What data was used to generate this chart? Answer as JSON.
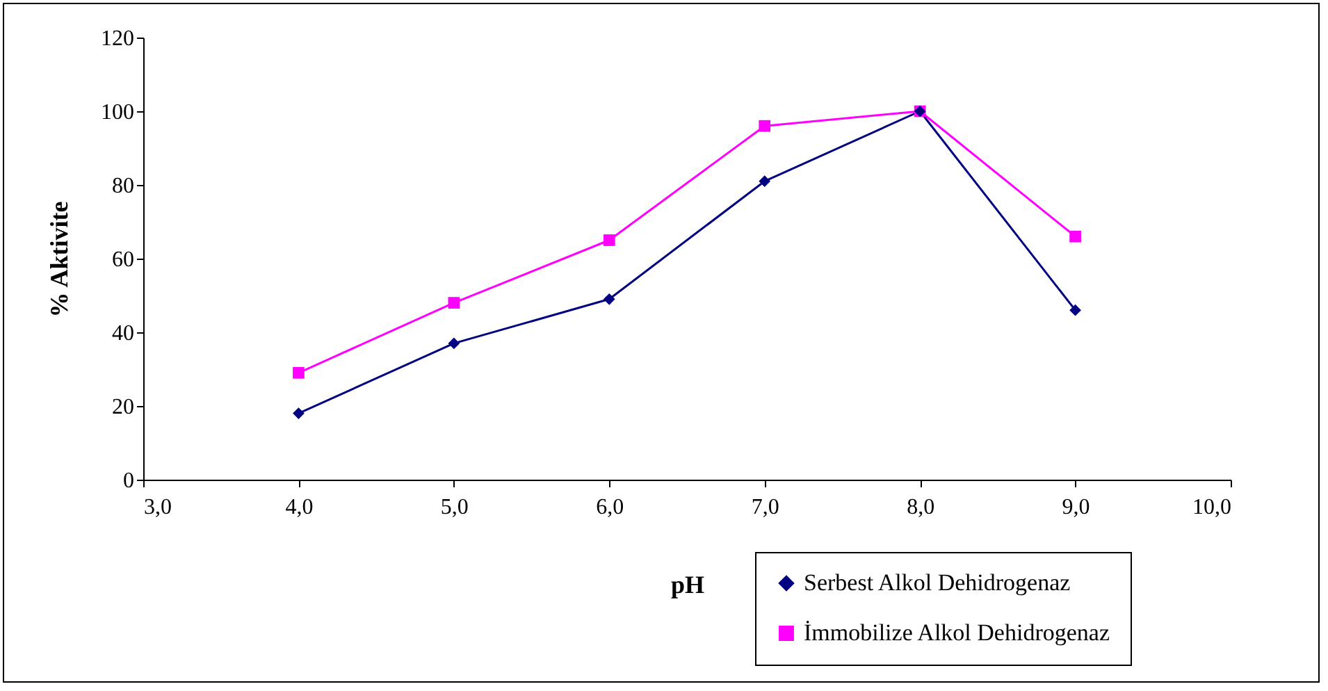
{
  "chart_data": {
    "type": "line",
    "xlabel": "pH",
    "ylabel": "% Aktivite",
    "x": [
      4,
      5,
      6,
      7,
      8,
      9
    ],
    "series": [
      {
        "name": "Serbest Alkol Dehidrogenaz",
        "color": "#000080",
        "marker": "diamond",
        "values": [
          18,
          37,
          49,
          81,
          100,
          46
        ]
      },
      {
        "name": "İmmobilize Alkol Dehidrogenaz",
        "color": "#ff00ff",
        "marker": "square",
        "values": [
          29,
          48,
          65,
          96,
          100,
          66
        ]
      }
    ],
    "xlim": [
      3,
      10
    ],
    "xticks": [
      {
        "value": 3,
        "label": "3,0"
      },
      {
        "value": 4,
        "label": "4,0"
      },
      {
        "value": 5,
        "label": "5,0"
      },
      {
        "value": 6,
        "label": "6,0"
      },
      {
        "value": 7,
        "label": "7,0"
      },
      {
        "value": 8,
        "label": "8,0"
      },
      {
        "value": 9,
        "label": "9,0"
      },
      {
        "value": 10,
        "label": "10,0"
      }
    ],
    "ylim": [
      0,
      120
    ],
    "yticks": [
      0,
      20,
      40,
      60,
      80,
      100,
      120
    ],
    "legend": "bottom right",
    "grid": false
  }
}
